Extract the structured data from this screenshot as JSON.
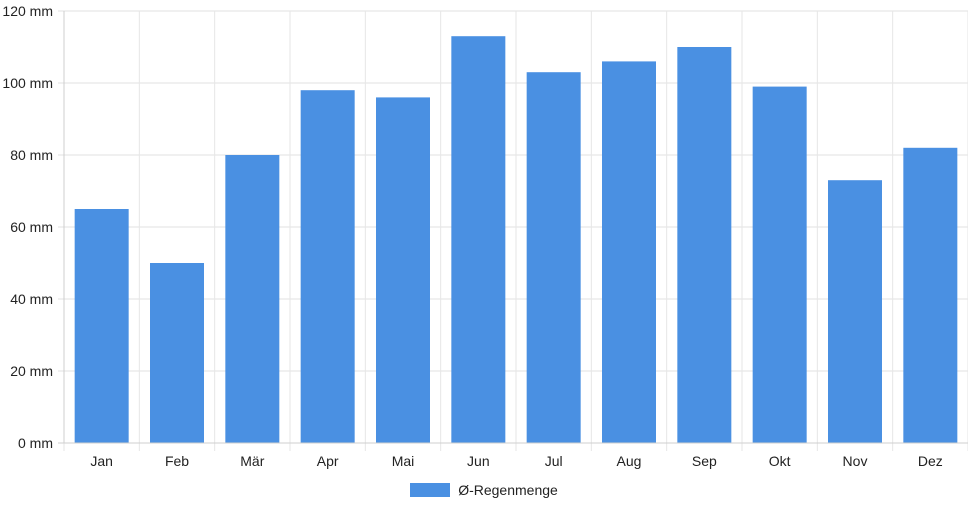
{
  "chart_data": {
    "type": "bar",
    "categories": [
      "Jan",
      "Feb",
      "Mär",
      "Apr",
      "Mai",
      "Jun",
      "Jul",
      "Aug",
      "Sep",
      "Okt",
      "Nov",
      "Dez"
    ],
    "series": [
      {
        "name": "Ø-Regenmenge",
        "values": [
          65,
          50,
          80,
          98,
          96,
          113,
          103,
          106,
          110,
          99,
          73,
          82
        ],
        "color": "#4a90e2"
      }
    ],
    "ylim": [
      0,
      120
    ],
    "yticks": [
      "0 mm",
      "20 mm",
      "40 mm",
      "60 mm",
      "80 mm",
      "100 mm",
      "120 mm"
    ],
    "ytick_values": [
      0,
      20,
      40,
      60,
      80,
      100,
      120
    ],
    "grid": true,
    "legend_position": "bottom"
  }
}
